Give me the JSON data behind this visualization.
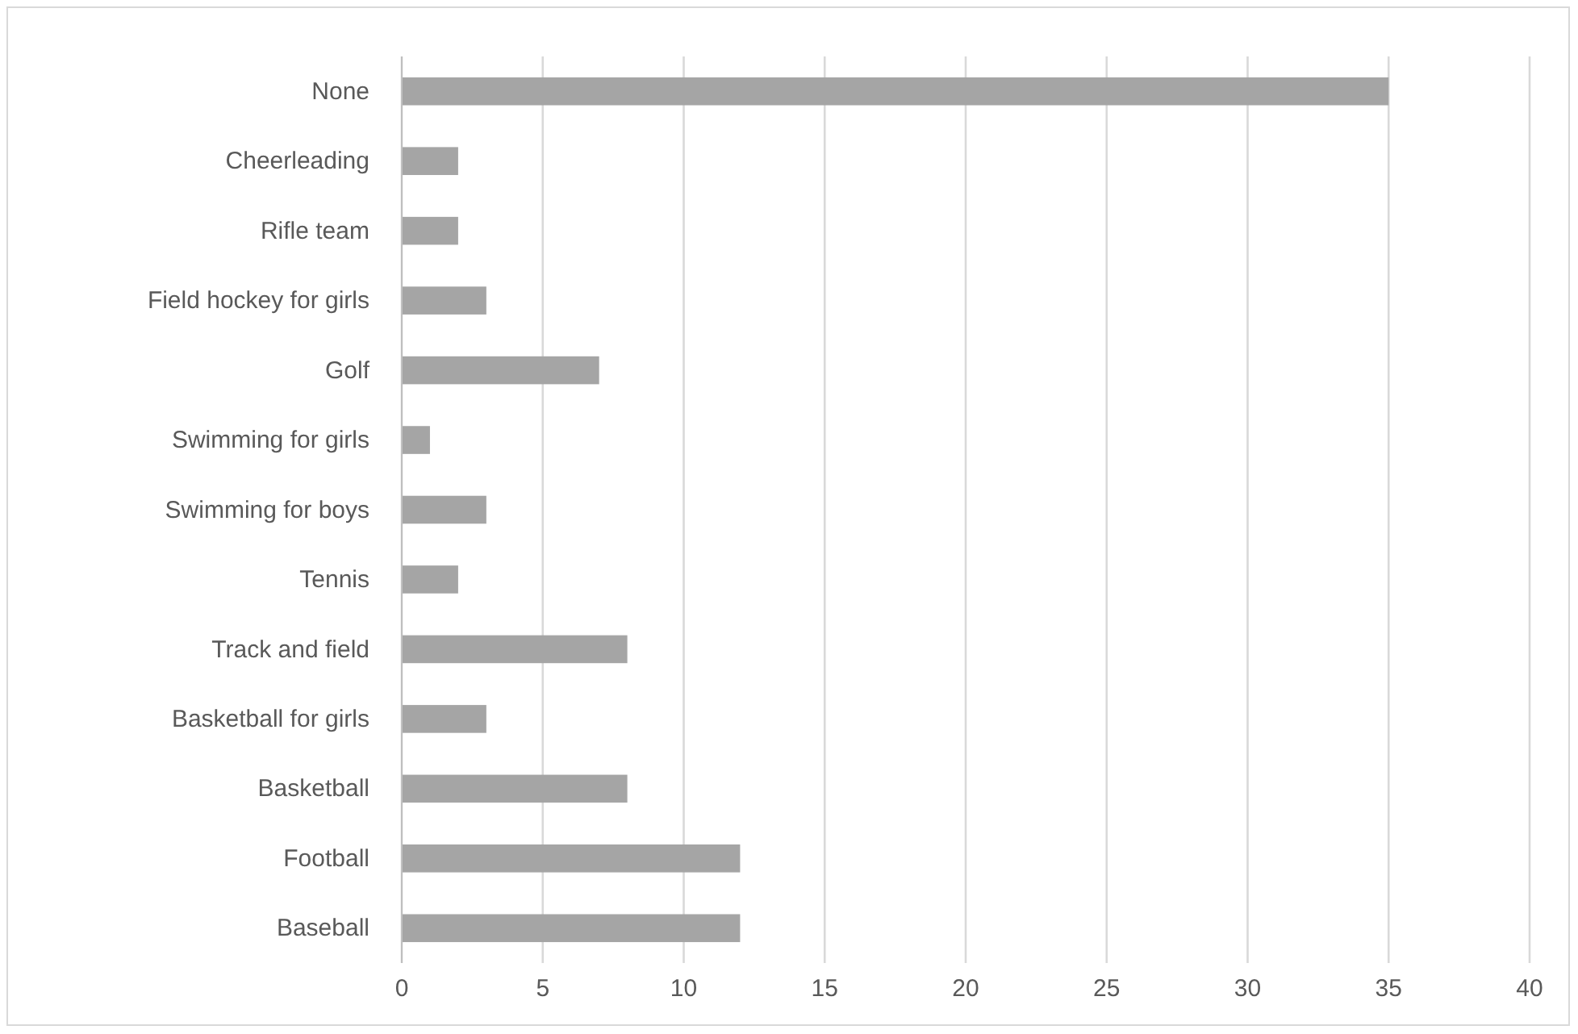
{
  "chart_data": {
    "type": "bar",
    "orientation": "horizontal",
    "categories": [
      "None",
      "Cheerleading",
      "Rifle team",
      "Field hockey for girls",
      "Golf",
      "Swimming for girls",
      "Swimming for boys",
      "Tennis",
      "Track and field",
      "Basketball for girls",
      "Basketball",
      "Football",
      "Baseball"
    ],
    "values": [
      35,
      2,
      2,
      3,
      7,
      1,
      3,
      2,
      8,
      3,
      8,
      12,
      12
    ],
    "color": "#a5a5a5",
    "xlim": [
      0,
      40
    ],
    "xticks": [
      0,
      5,
      10,
      15,
      20,
      25,
      30,
      35,
      40
    ],
    "grid": "x"
  }
}
